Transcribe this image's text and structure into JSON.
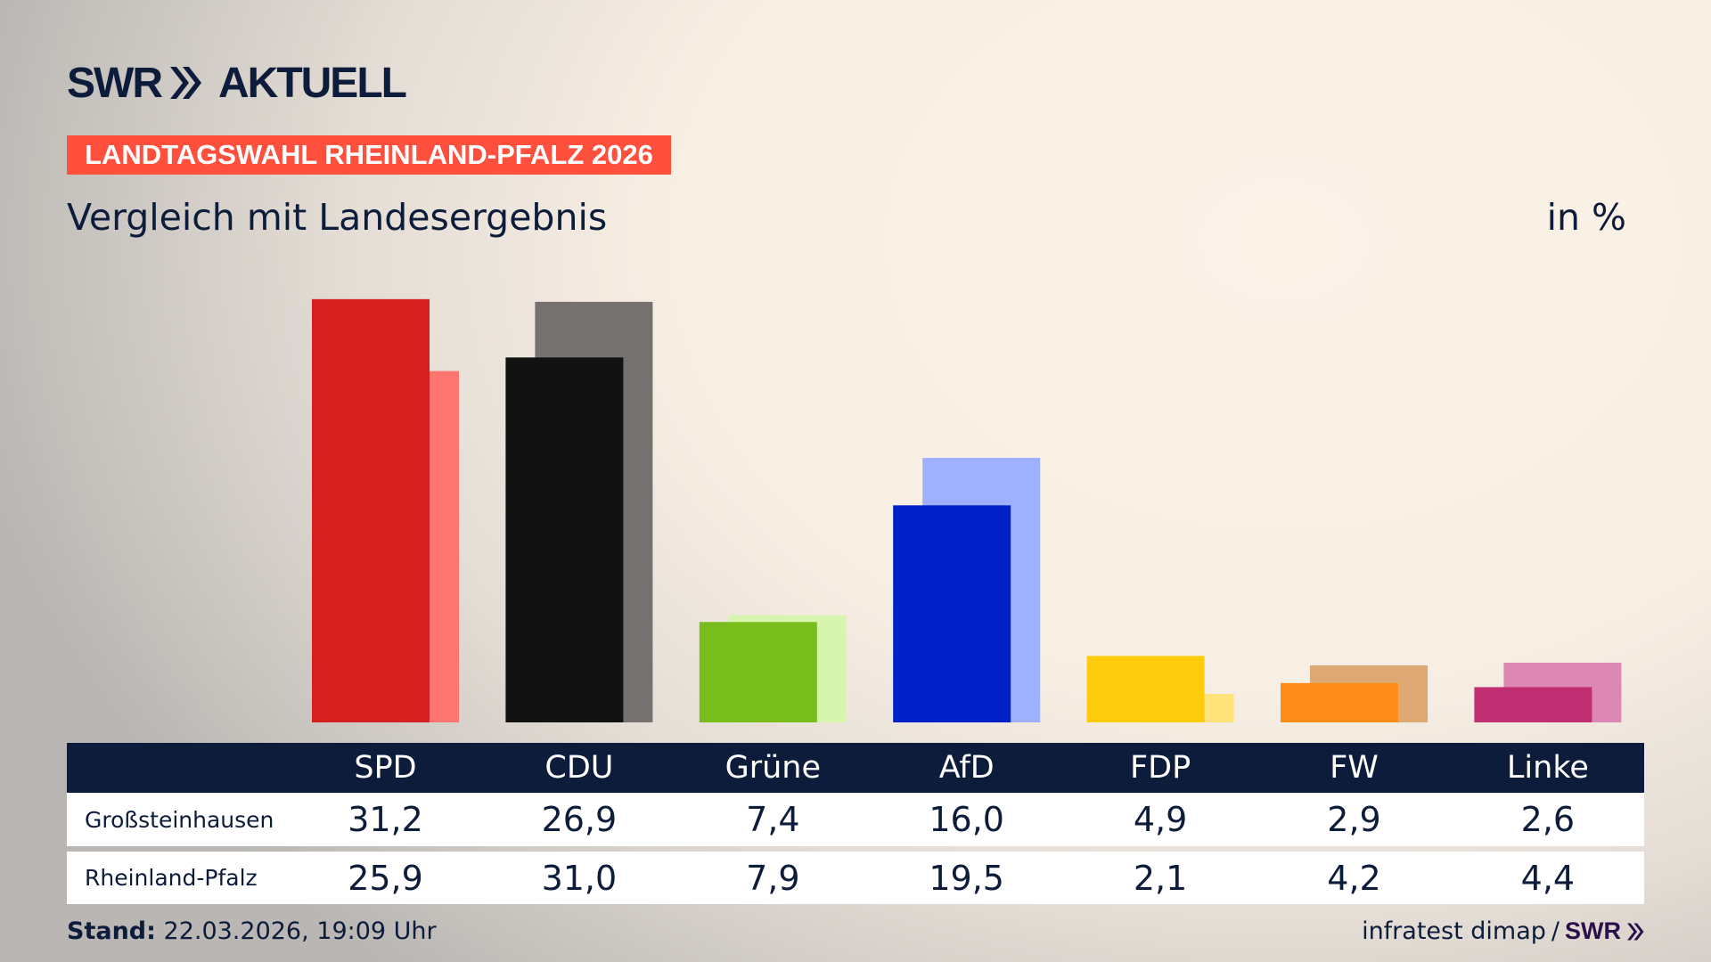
{
  "brand": {
    "logo_text": "SWR",
    "logo_suffix": "AKTUELL"
  },
  "banner": "LANDTAGSWAHL RHEINLAND-PFALZ 2026",
  "subtitle": "Vergleich mit Landesergebnis",
  "unit": "in %",
  "chart_data": {
    "type": "bar",
    "categories": [
      "SPD",
      "CDU",
      "Grüne",
      "AfD",
      "FDP",
      "FW",
      "Linke"
    ],
    "series": [
      {
        "name": "Großsteinhausen",
        "values": [
          31.2,
          26.9,
          7.4,
          16.0,
          4.9,
          2.9,
          2.6
        ]
      },
      {
        "name": "Rheinland-Pfalz",
        "values": [
          25.9,
          31.0,
          7.9,
          19.5,
          2.1,
          4.2,
          4.4
        ]
      }
    ],
    "colors_primary": [
      "#d62020",
      "#121212",
      "#79bd1c",
      "#0020c8",
      "#ffcc0d",
      "#ff8c17",
      "#bf2f72"
    ],
    "colors_secondary": [
      "#ff7670",
      "#75716e",
      "#d8f5b0",
      "#9fb0ff",
      "#ffe27a",
      "#dea874",
      "#dd87b4"
    ],
    "ylim": [
      0,
      32
    ],
    "grid": false
  },
  "table": {
    "headers": [
      "SPD",
      "CDU",
      "Grüne",
      "AfD",
      "FDP",
      "FW",
      "Linke"
    ],
    "rows": [
      {
        "label": "Großsteinhausen",
        "values": [
          "31,2",
          "26,9",
          "7,4",
          "16,0",
          "4,9",
          "2,9",
          "2,6"
        ]
      },
      {
        "label": "Rheinland-Pfalz",
        "values": [
          "25,9",
          "31,0",
          "7,9",
          "19,5",
          "2,1",
          "4,2",
          "4,4"
        ]
      }
    ]
  },
  "footer": {
    "stand_label": "Stand:",
    "stand_value": "22.03.2026, 19:09 Uhr",
    "source": "infratest dimap",
    "separator": "/",
    "source_logo": "SWR"
  }
}
